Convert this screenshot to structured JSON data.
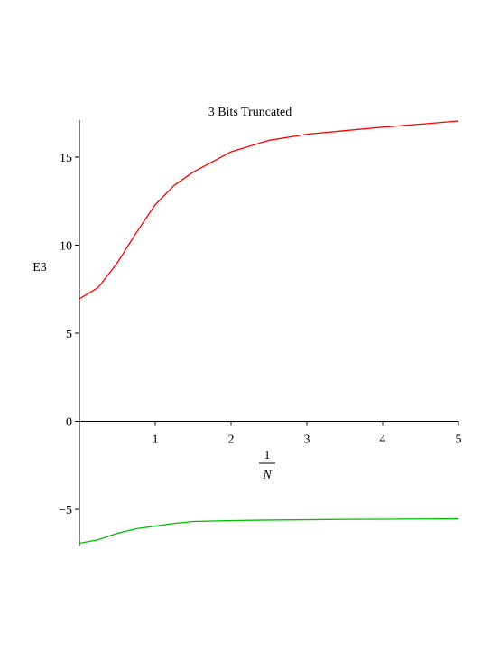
{
  "chart_data": {
    "type": "line",
    "title": "3 Bits Truncated",
    "x_label": {
      "numerator": "1",
      "denominator": "N"
    },
    "y_label": "E3",
    "x": [
      0,
      0.25,
      0.5,
      0.75,
      1,
      1.25,
      1.5,
      2,
      2.5,
      3,
      3.5,
      4,
      4.5,
      5
    ],
    "series": [
      {
        "color": "#ff0000",
        "values": [
          6.95,
          7.6,
          9.0,
          10.7,
          12.3,
          13.4,
          14.15,
          15.3,
          15.95,
          16.3,
          16.5,
          16.7,
          16.87,
          17.05
        ]
      },
      {
        "color": "#00c000",
        "values": [
          -6.92,
          -6.72,
          -6.36,
          -6.1,
          -5.95,
          -5.8,
          -5.69,
          -5.64,
          -5.61,
          -5.59,
          -5.57,
          -5.56,
          -5.55,
          -5.54
        ]
      }
    ],
    "xlim": [
      0,
      5
    ],
    "ylim": [
      -7.1,
      17.1
    ],
    "xticks": [
      1,
      2,
      3,
      4,
      5
    ],
    "yticks": [
      {
        "value": -5,
        "label": "−5"
      },
      0,
      5,
      10,
      15
    ]
  }
}
